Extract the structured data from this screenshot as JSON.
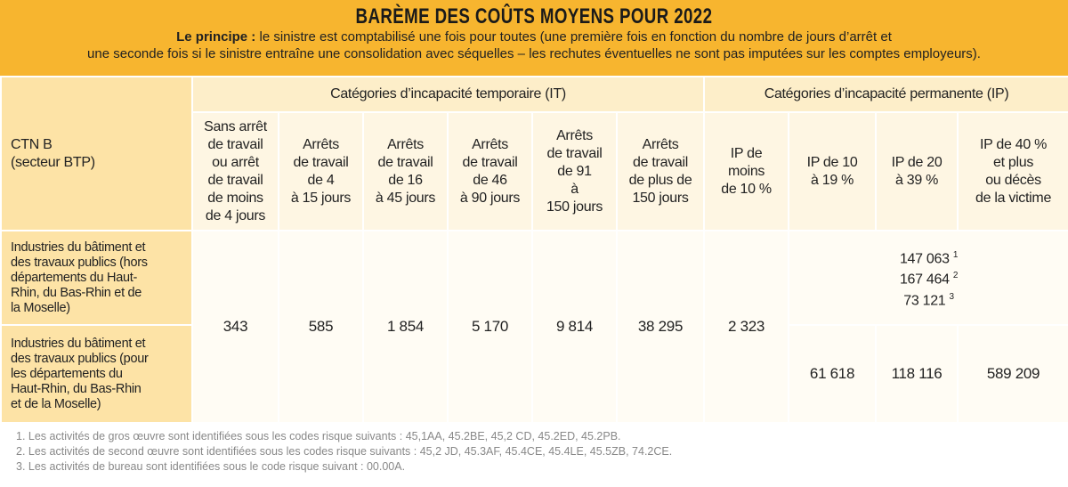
{
  "header": {
    "title": "BARÈME DES COÛTS MOYENS POUR 2022",
    "principle_label": "Le principe :",
    "principle_text": [
      "le sinistre est comptabilisé une fois pour toutes (une première fois en fonction du nombre de jours d’arrêt et",
      "une seconde fois si le sinistre entraîne une consolidation avec séquelles – les rechutes éventuelles ne sont pas imputées sur les comptes employeurs)."
    ]
  },
  "table": {
    "corner": [
      "CTN B",
      "(secteur BTP)"
    ],
    "groups": [
      "Catégories d’incapacité temporaire (IT)",
      "Catégories d’incapacité permanente (IP)"
    ],
    "columns": [
      [
        "Sans arrêt",
        "de travail",
        "ou arrêt",
        "de travail",
        "de moins",
        "de 4 jours"
      ],
      [
        "Arrêts",
        "de travail",
        "de 4",
        "à 15 jours"
      ],
      [
        "Arrêts",
        "de travail",
        "de 16",
        "à 45 jours"
      ],
      [
        "Arrêts",
        "de travail",
        "de 46",
        "à 90 jours"
      ],
      [
        "Arrêts",
        "de travail",
        "de 91",
        "à",
        "150 jours"
      ],
      [
        "Arrêts",
        "de travail",
        "de plus de",
        "150 jours"
      ],
      [
        "IP de",
        "moins",
        "de 10 %"
      ],
      [
        "IP de 10",
        "à 19 %"
      ],
      [
        "IP de 20",
        "à 39 %"
      ],
      [
        "IP de 40 %",
        "et plus",
        "ou décès",
        "de la victime"
      ]
    ],
    "rows": [
      {
        "label": [
          "Industries du bâtiment et",
          "des travaux publics (hors",
          "départements du Haut-",
          "Rhin, du Bas-Rhin et de",
          "la Moselle)"
        ]
      },
      {
        "label": [
          "Industries du bâtiment et",
          "des travaux publics (pour",
          "les départements du",
          "Haut-Rhin, du Bas-Rhin",
          "et de la Moselle)"
        ]
      }
    ],
    "shared_values": [
      "343",
      "585",
      "1 854",
      "5 170",
      "9 814",
      "38 295",
      "2 323"
    ],
    "row1_ip": [
      {
        "amount": "147 063",
        "note": "1"
      },
      {
        "amount": "167 464",
        "note": "2"
      },
      {
        "amount": "73 121",
        "note": "3"
      }
    ],
    "row2_ip": [
      "61 618",
      "118 116",
      "589 209"
    ]
  },
  "footnotes": [
    "1. Les activités de gros œuvre sont identifiées sous les codes risque suivants : 45,1AA, 45.2BE, 45,2 CD, 45.2ED, 45.2PB.",
    "2. Les activités de second œuvre sont identifiées sous les codes risque suivants : 45,2 JD, 45.3AF, 45.4CE, 45.4LE, 45.5ZB, 74.2CE.",
    "3. Les activités de bureau sont identifiées sous le code risque suivant : 00.00A."
  ]
}
